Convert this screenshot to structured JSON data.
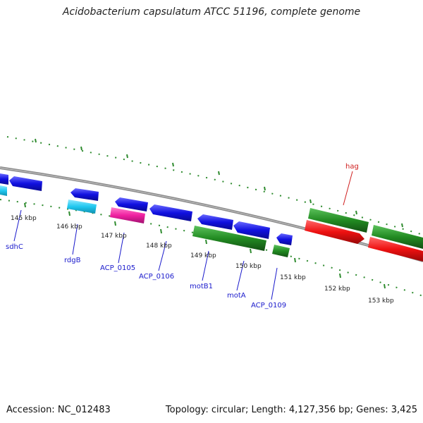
{
  "title": "Acidobacterium capsulatum ATCC 51196, complete genome",
  "accession": "Accession: NC_012483",
  "topology": "Topology: circular; Length: 4,127,356 bp; Genes: 3,425",
  "kbp_labels": [
    "145 kbp",
    "146 kbp",
    "147 kbp",
    "148 kbp",
    "149 kbp",
    "150 kbp",
    "151 kbp",
    "152 kbp",
    "153 kbp"
  ],
  "gene_labels": [
    "sdhC",
    "rdgB",
    "ACP_0105",
    "ACP_0106",
    "motB1",
    "motA",
    "ACP_0109",
    "hag"
  ],
  "colors": {
    "blue": "#1010e0",
    "cyan": "#20c8f0",
    "magenta": "#f020a0",
    "green": "#228b22",
    "red": "#ee1111",
    "backbone": "#888888",
    "tick": "#2e8b2e",
    "gene_label": "#1a1acc",
    "highlight_label": "#d02020"
  }
}
